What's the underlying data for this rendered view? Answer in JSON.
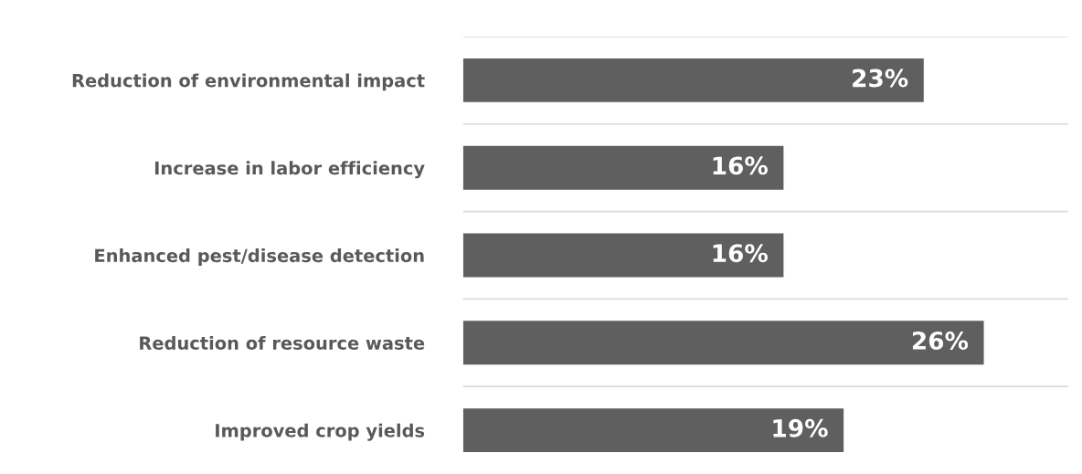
{
  "chart_data": {
    "type": "bar",
    "orientation": "horizontal",
    "categories": [
      "Reduction of environmental impact",
      "Increase in labor efficiency",
      "Enhanced pest/disease detection",
      "Reduction of resource waste",
      "Improved crop yields"
    ],
    "values": [
      23,
      16,
      16,
      26,
      19
    ],
    "value_labels": [
      "23%",
      "16%",
      "16%",
      "26%",
      "19%"
    ],
    "color": "#5f5f5f",
    "xlim": [
      0,
      30.2
    ],
    "tick_labels": "y",
    "grid": "y"
  }
}
